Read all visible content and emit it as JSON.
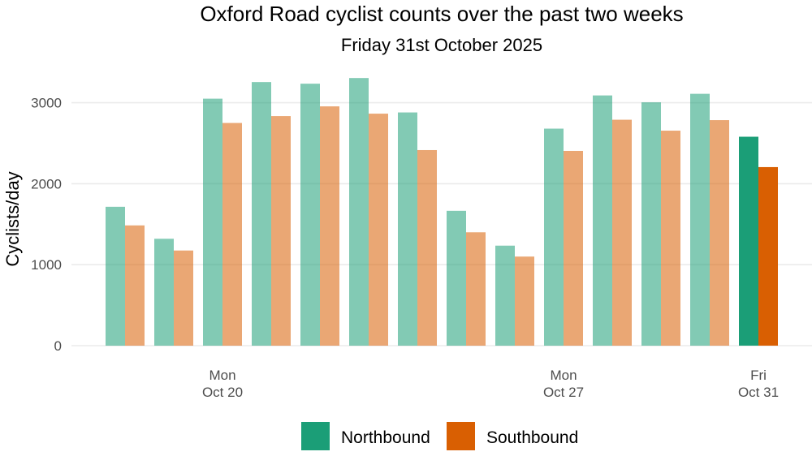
{
  "chart_data": {
    "type": "bar",
    "title": "Oxford Road cyclist counts over the past two weeks",
    "subtitle": "Friday 31st October 2025",
    "xlabel": "",
    "ylabel": "Cyclists/day",
    "ylim": [
      0,
      3500
    ],
    "y_ticks": [
      "0",
      "1000",
      "2000",
      "3000"
    ],
    "y_tick_values": [
      0,
      1000,
      2000,
      3000
    ],
    "grid": true,
    "legend_position": "bottom",
    "dates": [
      "2025-10-18",
      "2025-10-19",
      "2025-10-20",
      "2025-10-21",
      "2025-10-22",
      "2025-10-23",
      "2025-10-24",
      "2025-10-25",
      "2025-10-26",
      "2025-10-27",
      "2025-10-28",
      "2025-10-29",
      "2025-10-30",
      "2025-10-31"
    ],
    "highlight_date": "2025-10-31",
    "x_ticks": [
      {
        "date": "2025-10-20",
        "line1": "Mon",
        "line2": "Oct 20"
      },
      {
        "date": "2025-10-27",
        "line1": "Mon",
        "line2": "Oct 27"
      },
      {
        "date": "2025-10-31",
        "line1": "Fri",
        "line2": "Oct 31"
      }
    ],
    "series": [
      {
        "name": "Northbound",
        "color": "#1b9e77",
        "values": [
          1715,
          1320,
          3050,
          3255,
          3235,
          3305,
          2880,
          1665,
          1235,
          2680,
          3090,
          3005,
          3110,
          2580
        ]
      },
      {
        "name": "Southbound",
        "color": "#d95f02",
        "values": [
          1485,
          1175,
          2750,
          2835,
          2955,
          2865,
          2415,
          1400,
          1100,
          2405,
          2790,
          2655,
          2785,
          2205
        ]
      }
    ]
  }
}
